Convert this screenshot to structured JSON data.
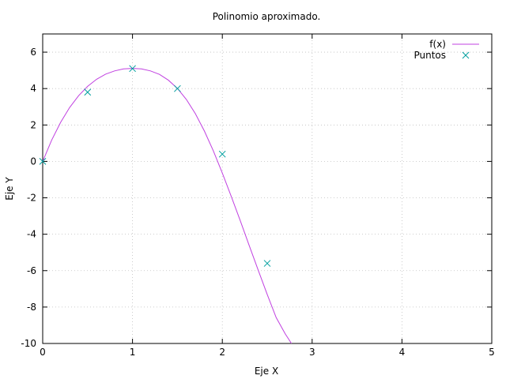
{
  "chart_data": {
    "type": "line",
    "title": "Polinomio aproximado.",
    "xlabel": "Eje X",
    "ylabel": "Eje Y",
    "xlim": [
      0,
      5
    ],
    "ylim": [
      -10,
      7
    ],
    "x_ticks": [
      "0",
      "1",
      "2",
      "3",
      "4",
      "5"
    ],
    "y_ticks": [
      "-10",
      "-8",
      "-6",
      "-4",
      "-2",
      "0",
      "2",
      "4",
      "6"
    ],
    "grid": true,
    "legend_position": "top-right",
    "series": [
      {
        "name": "f(x)",
        "kind": "line",
        "color": "#c040e0",
        "x": [
          0,
          0.1,
          0.2,
          0.3,
          0.4,
          0.5,
          0.6,
          0.7,
          0.8,
          0.9,
          1.0,
          1.1,
          1.2,
          1.3,
          1.4,
          1.5,
          1.6,
          1.7,
          1.8,
          1.9,
          2.0,
          2.1,
          2.2,
          2.3,
          2.4,
          2.5,
          2.6,
          2.7,
          2.77
        ],
        "y": [
          0.0,
          1.17,
          2.15,
          2.96,
          3.61,
          4.12,
          4.51,
          4.79,
          4.97,
          5.08,
          5.11,
          5.08,
          4.97,
          4.78,
          4.46,
          4.01,
          3.4,
          2.62,
          1.67,
          0.58,
          -0.64,
          -1.93,
          -3.26,
          -4.63,
          -5.98,
          -7.31,
          -8.58,
          -9.47,
          -10.0
        ]
      },
      {
        "name": "Puntos",
        "kind": "scatter",
        "color": "#009e9e",
        "marker": "x",
        "x": [
          0,
          0.5,
          1.0,
          1.5,
          2.0,
          2.5
        ],
        "y": [
          0.0,
          3.8,
          5.1,
          4.0,
          0.4,
          -5.6
        ]
      }
    ]
  }
}
